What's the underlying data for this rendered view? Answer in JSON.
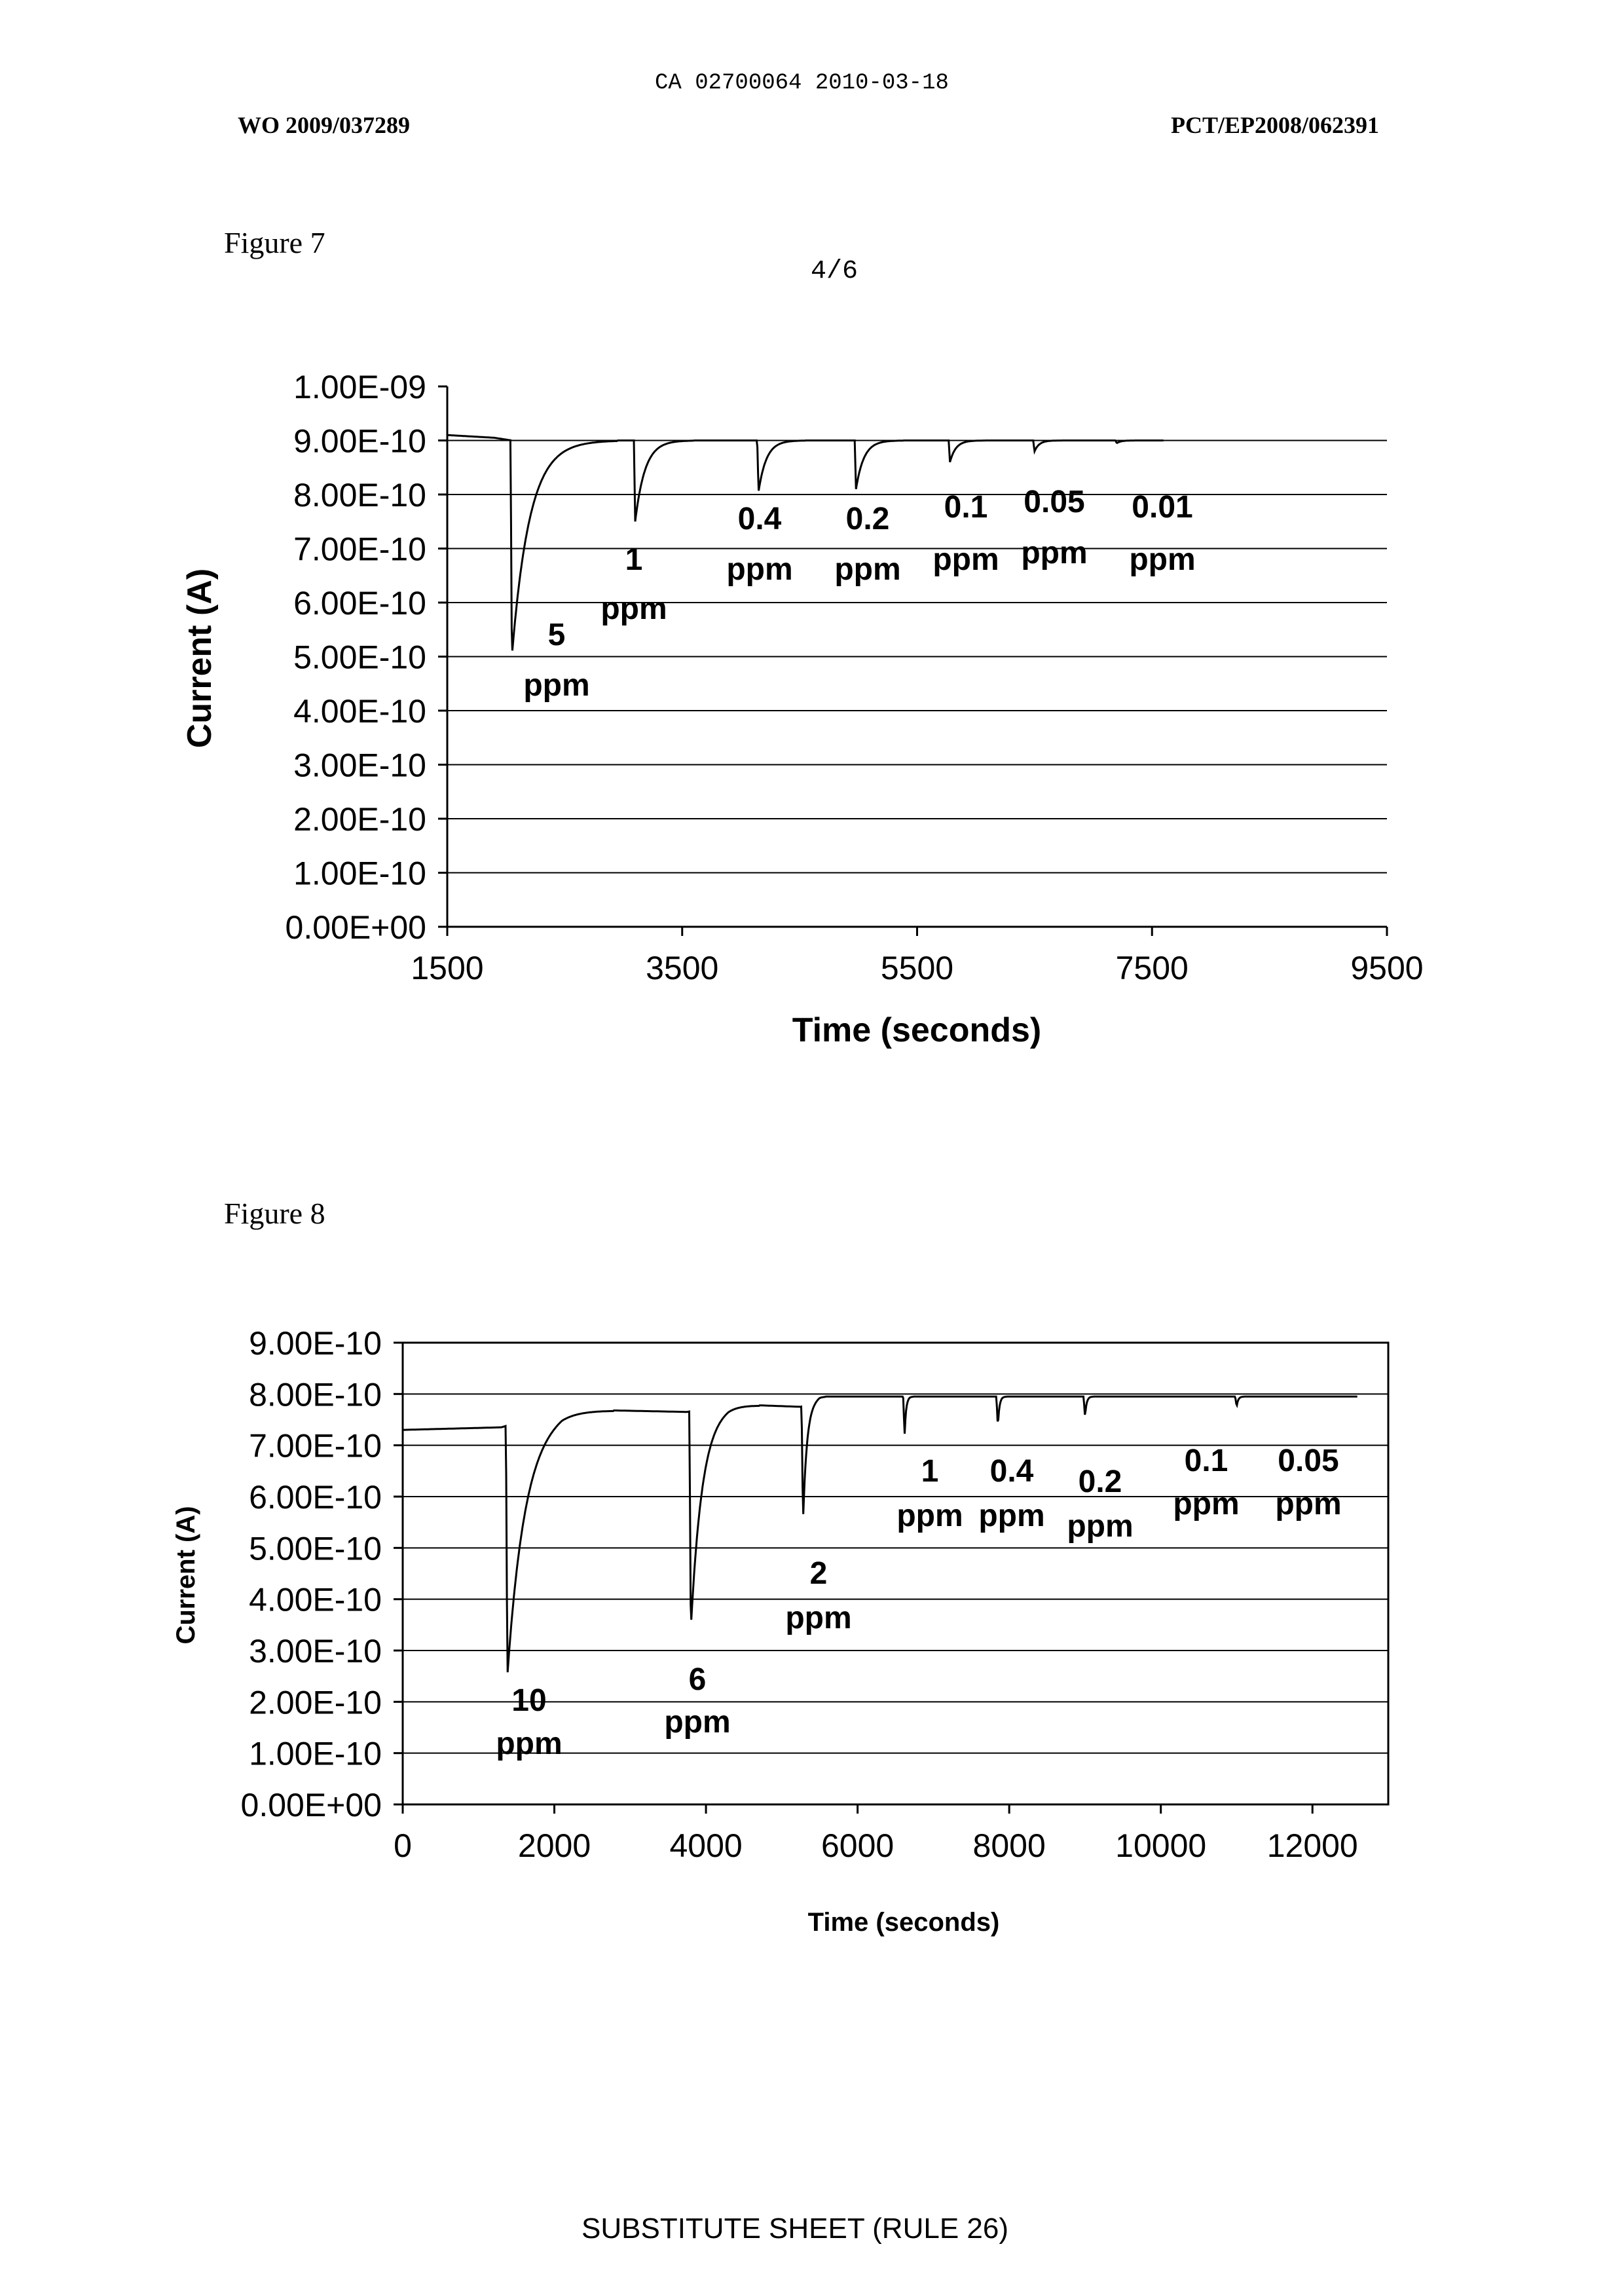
{
  "header": {
    "ca_line": "CA 02700064 2010-03-18",
    "wo_number": "WO 2009/037289",
    "pct_number": "PCT/EP2008/062391",
    "page_number": "4/6"
  },
  "footer": {
    "text": "SUBSTITUTE SHEET (RULE 26)"
  },
  "figures": [
    {
      "caption": "Figure 7",
      "ylabel": "Current (A)",
      "xlabel": "Time (seconds)",
      "yticks": [
        "1.00E-09",
        "9.00E-10",
        "8.00E-10",
        "7.00E-10",
        "6.00E-10",
        "5.00E-10",
        "4.00E-10",
        "3.00E-10",
        "2.00E-10",
        "1.00E-10",
        "0.00E+00"
      ],
      "xticks": [
        "1500",
        "3500",
        "5500",
        "7500",
        "9500"
      ],
      "annotations": [
        {
          "conc": "5",
          "unit": "ppm"
        },
        {
          "conc": "1",
          "unit": "ppm"
        },
        {
          "conc": "0.4",
          "unit": "ppm"
        },
        {
          "conc": "0.2",
          "unit": "ppm"
        },
        {
          "conc": "0.1",
          "unit": "ppm"
        },
        {
          "conc": "0.05",
          "unit": "ppm"
        },
        {
          "conc": "0.01",
          "unit": "ppm"
        }
      ]
    },
    {
      "caption": "Figure 8",
      "ylabel": "Current (A)",
      "xlabel": "Time (seconds)",
      "yticks": [
        "9.00E-10",
        "8.00E-10",
        "7.00E-10",
        "6.00E-10",
        "5.00E-10",
        "4.00E-10",
        "3.00E-10",
        "2.00E-10",
        "1.00E-10",
        "0.00E+00"
      ],
      "xticks": [
        "0",
        "2000",
        "4000",
        "6000",
        "8000",
        "10000",
        "12000"
      ],
      "annotations": [
        {
          "conc": "10",
          "unit": "ppm"
        },
        {
          "conc": "6",
          "unit": "ppm"
        },
        {
          "conc": "2",
          "unit": "ppm"
        },
        {
          "conc": "1",
          "unit": "ppm"
        },
        {
          "conc": "0.4",
          "unit": "ppm"
        },
        {
          "conc": "0.2",
          "unit": "ppm"
        },
        {
          "conc": "0.1",
          "unit": "ppm"
        },
        {
          "conc": "0.05",
          "unit": "ppm"
        }
      ]
    }
  ],
  "chart_data": [
    {
      "type": "line",
      "xlim": [
        1500,
        9500
      ],
      "ylim": [
        0,
        1e-09
      ],
      "grid": "horizontal",
      "baseline": [
        [
          1500,
          9.1e-10
        ],
        [
          1900,
          9.05e-10
        ],
        [
          2050,
          9e-10
        ],
        [
          7600,
          9e-10
        ]
      ],
      "dips": [
        {
          "x": 2050,
          "min": 5e-10,
          "recovery_s": 450
        },
        {
          "x": 3100,
          "min": 7.5e-10,
          "recovery_s": 250
        },
        {
          "x": 4150,
          "min": 8.05e-10,
          "recovery_s": 200
        },
        {
          "x": 4980,
          "min": 8.1e-10,
          "recovery_s": 200
        },
        {
          "x": 5780,
          "min": 8.6e-10,
          "recovery_s": 150
        },
        {
          "x": 6500,
          "min": 8.8e-10,
          "recovery_s": 120
        },
        {
          "x": 7200,
          "min": 8.95e-10,
          "recovery_s": 100
        }
      ]
    },
    {
      "type": "line",
      "xlim": [
        0,
        13000
      ],
      "ylim": [
        0,
        9e-10
      ],
      "grid": "horizontal",
      "baseline": [
        [
          0,
          7.3e-10
        ],
        [
          1300,
          7.35e-10
        ],
        [
          2100,
          7.7e-10
        ],
        [
          3750,
          7.65e-10
        ],
        [
          4300,
          7.8e-10
        ],
        [
          5250,
          7.75e-10
        ],
        [
          5500,
          7.95e-10
        ],
        [
          12600,
          7.95e-10
        ]
      ],
      "dips": [
        {
          "x": 1380,
          "min": 2.5e-10,
          "recovery_s": 700
        },
        {
          "x": 3800,
          "min": 3.4e-10,
          "recovery_s": 450
        },
        {
          "x": 5280,
          "min": 5.5e-10,
          "recovery_s": 150
        },
        {
          "x": 6620,
          "min": 7.2e-10,
          "recovery_s": 60
        },
        {
          "x": 7850,
          "min": 7.35e-10,
          "recovery_s": 60
        },
        {
          "x": 9000,
          "min": 7.55e-10,
          "recovery_s": 60
        },
        {
          "x": 11000,
          "min": 7.75e-10,
          "recovery_s": 60
        }
      ]
    }
  ]
}
